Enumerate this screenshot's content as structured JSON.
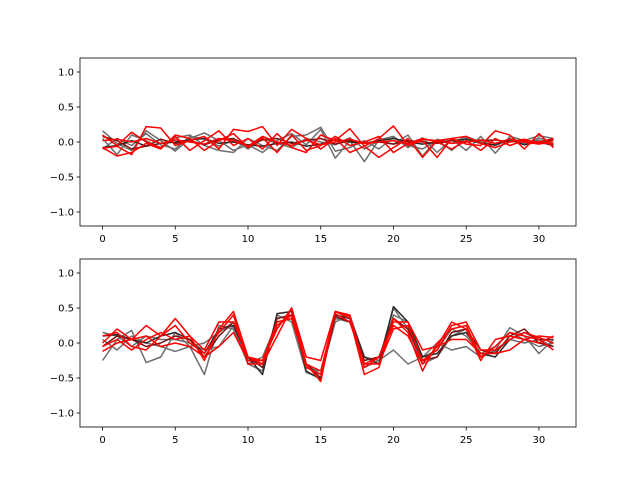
{
  "chart_data": [
    {
      "type": "line",
      "title": "",
      "xlabel": "",
      "ylabel": "",
      "x": [
        0,
        1,
        2,
        3,
        4,
        5,
        6,
        7,
        8,
        9,
        10,
        11,
        12,
        13,
        14,
        15,
        16,
        17,
        18,
        19,
        20,
        21,
        22,
        23,
        24,
        25,
        26,
        27,
        28,
        29,
        30,
        31
      ],
      "xlim": [
        -1.55,
        32.55
      ],
      "ylim": [
        -1.2,
        1.2
      ],
      "xticks": [
        0,
        5,
        10,
        15,
        20,
        25,
        30
      ],
      "yticks": [
        -1.0,
        -0.5,
        0.0,
        0.5,
        1.0
      ],
      "xtick_labels": [
        "0",
        "5",
        "10",
        "15",
        "20",
        "25",
        "30"
      ],
      "ytick_labels": [
        "−1.0",
        "−0.5",
        "0.0",
        "0.5",
        "1.0"
      ],
      "grid": false,
      "series": [
        {
          "color": "#6e6e6e",
          "values": [
            0.16,
            -0.02,
            -0.12,
            0.16,
            0.02,
            -0.13,
            0.05,
            0.13,
            0.02,
            -0.12,
            -0.04,
            -0.15,
            0.02,
            0.12,
            -0.04,
            0.18,
            -0.23,
            0.02,
            -0.28,
            0.03,
            0.08,
            -0.08,
            0.06,
            -0.15,
            0.04,
            -0.12,
            0.08,
            -0.16,
            0.08,
            0.02,
            0.09,
            0.05
          ]
        },
        {
          "color": "#6e6e6e",
          "values": [
            0.05,
            -0.18,
            0.1,
            0.02,
            -0.09,
            0.06,
            0.1,
            -0.05,
            -0.12,
            -0.15,
            0.05,
            -0.05,
            -0.12,
            0.08,
            0.1,
            0.21,
            -0.13,
            -0.08,
            0.02,
            -0.1,
            0.07,
            -0.05,
            -0.1,
            0.03,
            -0.12,
            0.06,
            -0.02,
            -0.05,
            0.04,
            -0.04,
            0.06,
            -0.02
          ]
        },
        {
          "color": "#6e6e6e",
          "values": [
            -0.1,
            0.05,
            -0.05,
            0.12,
            -0.04,
            -0.1,
            0.08,
            0.04,
            -0.06,
            0.03,
            -0.1,
            0.05,
            -0.02,
            -0.08,
            0.05,
            0.0,
            -0.04,
            0.06,
            -0.1,
            0.02,
            -0.03,
            0.1,
            -0.2,
            0.04,
            -0.02,
            0.08,
            0.0,
            -0.05,
            0.05,
            -0.02,
            0.03,
            -0.04
          ]
        },
        {
          "color": "#2a2a2a",
          "values": [
            -0.08,
            -0.05,
            0.02,
            -0.06,
            -0.02,
            0.0,
            0.03,
            0.05,
            -0.02,
            0.0,
            -0.04,
            -0.06,
            -0.02,
            0.0,
            -0.06,
            -0.03,
            0.04,
            0.0,
            -0.02,
            0.02,
            0.05,
            0.0,
            -0.03,
            0.0,
            0.02,
            0.04,
            -0.02,
            -0.04,
            0.03,
            -0.04,
            0.0,
            0.03
          ]
        },
        {
          "color": "#7a1010",
          "values": [
            0.08,
            0.02,
            -0.1,
            -0.06,
            0.04,
            -0.02,
            0.02,
            -0.04,
            0.03,
            0.05,
            -0.05,
            0.03,
            0.05,
            -0.02,
            0.02,
            0.05,
            -0.03,
            0.02,
            -0.02,
            0.0,
            -0.03,
            0.02,
            0.0,
            -0.02,
            0.02,
            0.0,
            0.02,
            0.03,
            0.0,
            0.02,
            0.0,
            -0.05
          ]
        },
        {
          "color": "#ff0000",
          "values": [
            -0.09,
            -0.06,
            -0.18,
            0.22,
            0.2,
            -0.05,
            0.02,
            0.08,
            -0.1,
            0.18,
            0.15,
            0.22,
            -0.05,
            0.18,
            0.05,
            -0.1,
            0.05,
            -0.15,
            -0.06,
            0.05,
            0.23,
            -0.05,
            0.02,
            -0.22,
            0.05,
            -0.03,
            -0.05,
            0.16,
            0.1,
            -0.1,
            0.12,
            -0.08
          ]
        },
        {
          "color": "#ff0000",
          "values": [
            0.1,
            -0.05,
            0.14,
            0.0,
            -0.08,
            0.08,
            -0.12,
            0.02,
            0.16,
            -0.05,
            0.05,
            -0.1,
            0.12,
            -0.08,
            -0.15,
            0.1,
            0.02,
            0.19,
            -0.06,
            -0.22,
            -0.08,
            0.05,
            -0.22,
            0.02,
            0.05,
            0.08,
            -0.02,
            -0.08,
            0.0,
            0.04,
            -0.02,
            -0.02
          ]
        },
        {
          "color": "#ff0000",
          "values": [
            -0.08,
            -0.2,
            -0.15,
            -0.02,
            -0.1,
            0.1,
            0.05,
            -0.12,
            0.02,
            0.12,
            -0.08,
            0.06,
            -0.15,
            0.1,
            -0.12,
            -0.05,
            0.08,
            -0.05,
            0.0,
            0.08,
            -0.15,
            -0.02,
            0.05,
            0.0,
            -0.1,
            0.02,
            -0.12,
            0.05,
            -0.05,
            0.02,
            0.0,
            0.05
          ]
        },
        {
          "color": "#ff0000",
          "values": [
            0.02,
            0.04,
            0.0,
            0.05,
            -0.02,
            0.03,
            0.0,
            -0.03,
            0.05,
            0.02,
            -0.06,
            0.08,
            0.0,
            -0.05,
            0.03,
            -0.04,
            0.0,
            0.04,
            -0.02,
            0.0,
            0.02,
            -0.03,
            0.04,
            0.02,
            -0.02,
            0.0,
            0.03,
            -0.02,
            0.04,
            0.0,
            -0.03,
            0.02
          ]
        }
      ]
    },
    {
      "type": "line",
      "title": "",
      "xlabel": "",
      "ylabel": "",
      "x": [
        0,
        1,
        2,
        3,
        4,
        5,
        6,
        7,
        8,
        9,
        10,
        11,
        12,
        13,
        14,
        15,
        16,
        17,
        18,
        19,
        20,
        21,
        22,
        23,
        24,
        25,
        26,
        27,
        28,
        29,
        30,
        31
      ],
      "xlim": [
        -1.55,
        32.55
      ],
      "ylim": [
        -1.2,
        1.2
      ],
      "xticks": [
        0,
        5,
        10,
        15,
        20,
        25,
        30
      ],
      "yticks": [
        -1.0,
        -0.5,
        0.0,
        0.5,
        1.0
      ],
      "xtick_labels": [
        "0",
        "5",
        "10",
        "15",
        "20",
        "25",
        "30"
      ],
      "ytick_labels": [
        "−1.0",
        "−0.5",
        "0.0",
        "0.5",
        "1.0"
      ],
      "grid": false,
      "series": [
        {
          "color": "#6e6e6e",
          "values": [
            -0.25,
            0.05,
            0.18,
            -0.28,
            -0.2,
            0.15,
            -0.05,
            -0.45,
            0.25,
            0.2,
            -0.3,
            -0.4,
            0.4,
            0.3,
            -0.42,
            -0.5,
            0.4,
            0.35,
            -0.35,
            -0.25,
            0.5,
            0.2,
            -0.3,
            -0.2,
            0.1,
            0.2,
            -0.2,
            -0.1,
            0.22,
            0.1,
            -0.15,
            0.05
          ]
        },
        {
          "color": "#6e6e6e",
          "values": [
            0.05,
            -0.1,
            0.1,
            0.0,
            -0.05,
            -0.12,
            -0.05,
            0.0,
            0.15,
            0.3,
            -0.25,
            -0.3,
            0.35,
            0.4,
            -0.3,
            -0.45,
            0.3,
            0.4,
            -0.2,
            -0.3,
            0.4,
            0.3,
            -0.2,
            -0.1,
            0.2,
            0.1,
            -0.15,
            -0.05,
            0.15,
            0.05,
            -0.05,
            0.0
          ]
        },
        {
          "color": "#6e6e6e",
          "values": [
            0.15,
            0.1,
            -0.05,
            0.1,
            0.05,
            0.05,
            0.0,
            -0.1,
            -0.05,
            0.25,
            -0.3,
            -0.2,
            0.3,
            0.35,
            -0.35,
            -0.4,
            0.35,
            0.3,
            -0.2,
            -0.25,
            -0.1,
            -0.3,
            -0.2,
            0.0,
            -0.1,
            -0.05,
            -0.2,
            -0.12,
            0.05,
            0.0,
            0.05,
            -0.05
          ]
        },
        {
          "color": "#2a2a2a",
          "values": [
            0.1,
            0.12,
            0.05,
            0.0,
            0.1,
            0.15,
            0.05,
            -0.15,
            0.2,
            0.25,
            -0.2,
            -0.45,
            0.42,
            0.45,
            -0.4,
            -0.52,
            0.4,
            0.35,
            -0.2,
            -0.3,
            0.52,
            0.3,
            -0.2,
            -0.15,
            0.1,
            0.15,
            -0.15,
            -0.2,
            0.05,
            0.15,
            0.05,
            0.05
          ]
        },
        {
          "color": "#7a1010",
          "values": [
            -0.05,
            0.1,
            0.05,
            -0.05,
            0.0,
            0.1,
            0.05,
            -0.2,
            0.1,
            0.3,
            -0.2,
            -0.35,
            0.35,
            0.4,
            -0.3,
            -0.5,
            0.38,
            0.3,
            -0.25,
            -0.2,
            0.35,
            0.2,
            -0.25,
            -0.2,
            0.15,
            0.2,
            -0.1,
            -0.15,
            0.1,
            0.2,
            0.0,
            -0.05
          ]
        },
        {
          "color": "#ff0000",
          "values": [
            0.0,
            0.2,
            0.05,
            0.25,
            0.1,
            0.35,
            0.1,
            -0.1,
            0.3,
            0.3,
            -0.2,
            -0.3,
            0.1,
            0.5,
            -0.2,
            -0.25,
            0.45,
            0.4,
            -0.35,
            -0.2,
            0.3,
            0.3,
            -0.1,
            -0.05,
            0.3,
            0.2,
            -0.25,
            0.05,
            0.1,
            0.05,
            0.1,
            0.08
          ]
        },
        {
          "color": "#ff0000",
          "values": [
            0.1,
            0.15,
            -0.05,
            -0.1,
            0.1,
            0.25,
            0.0,
            -0.15,
            0.15,
            0.4,
            -0.3,
            -0.3,
            0.25,
            0.4,
            -0.35,
            -0.45,
            0.45,
            0.35,
            -0.45,
            -0.35,
            0.35,
            0.15,
            -0.4,
            0.0,
            0.2,
            0.25,
            -0.2,
            -0.05,
            0.15,
            0.1,
            0.05,
            -0.1
          ]
        },
        {
          "color": "#ff0000",
          "values": [
            -0.12,
            0.0,
            0.05,
            0.1,
            -0.05,
            0.0,
            -0.05,
            -0.2,
            -0.05,
            0.15,
            -0.25,
            -0.25,
            0.3,
            0.35,
            -0.3,
            -0.4,
            0.42,
            0.3,
            -0.3,
            -0.2,
            0.25,
            0.1,
            -0.3,
            -0.05,
            0.05,
            0.05,
            -0.15,
            -0.15,
            -0.1,
            0.05,
            0.0,
            0.1
          ]
        },
        {
          "color": "#ff0000",
          "values": [
            -0.05,
            0.05,
            -0.1,
            0.05,
            0.15,
            0.05,
            0.1,
            -0.25,
            0.2,
            0.45,
            -0.2,
            -0.25,
            0.2,
            0.5,
            -0.3,
            -0.55,
            0.45,
            0.38,
            -0.3,
            -0.3,
            0.2,
            0.25,
            -0.25,
            -0.1,
            0.25,
            0.3,
            -0.1,
            -0.1,
            0.05,
            0.15,
            0.08,
            0.0
          ]
        }
      ]
    }
  ]
}
